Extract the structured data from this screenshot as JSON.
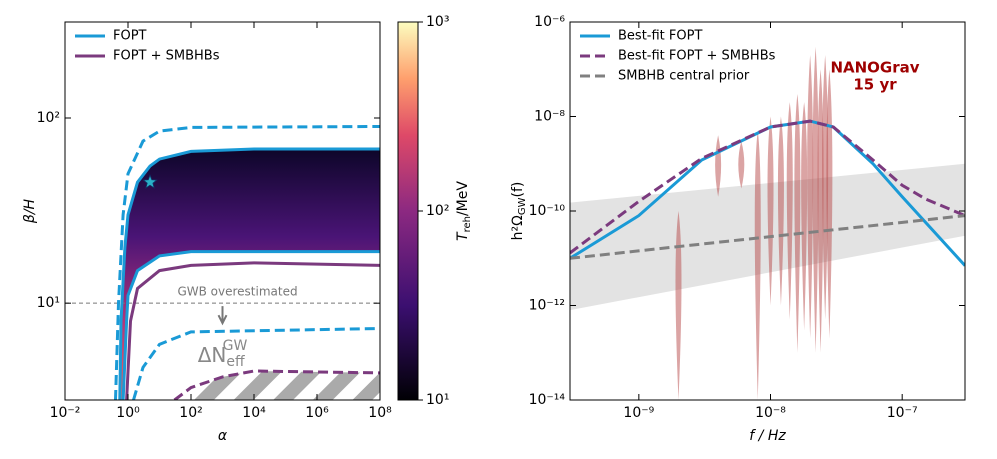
{
  "chart_data": [
    {
      "type": "line",
      "xlabel": "α",
      "ylabel": "β/H",
      "xscale": "log",
      "yscale": "log",
      "legend": "upper left",
      "xlim": [
        0.01,
        100000000
      ],
      "ylim": [
        3,
        330
      ],
      "xticks": [
        {
          "value": 0.01,
          "label": "10⁻²"
        },
        {
          "value": 1,
          "label": "10⁰"
        },
        {
          "value": 100,
          "label": "10²"
        },
        {
          "value": 10000,
          "label": "10⁴"
        },
        {
          "value": 1000000,
          "label": "10⁶"
        },
        {
          "value": 100000000,
          "label": "10⁸"
        }
      ],
      "yticks": [
        {
          "value": 10,
          "label": "10¹"
        },
        {
          "value": 100,
          "label": "10²"
        }
      ],
      "series": [
        {
          "name": "FOPT",
          "color": "#1a9ad6",
          "dash": false,
          "x": [
            0.55,
            0.6,
            0.8,
            1,
            2,
            5,
            10,
            100,
            10000,
            100000000
          ],
          "values": [
            3,
            8,
            20,
            30,
            45,
            55,
            60,
            66,
            68,
            68
          ]
        },
        {
          "name": null,
          "color": "#1a9ad6",
          "dash": true,
          "x": [
            0.4,
            0.5,
            0.7,
            1,
            3,
            10,
            100,
            100000000
          ],
          "values": [
            3,
            10,
            30,
            50,
            75,
            85,
            89,
            90
          ]
        },
        {
          "name": null,
          "color": "#1a9ad6",
          "dash": false,
          "x": [
            0.7,
            0.9,
            1,
            2,
            10,
            100,
            100000000
          ],
          "values": [
            3,
            8,
            11,
            15,
            18,
            19,
            19
          ]
        },
        {
          "name": null,
          "color": "#1a9ad6",
          "dash": true,
          "x": [
            1.5,
            3,
            10,
            100,
            100000000
          ],
          "values": [
            3,
            4.5,
            6,
            7,
            7.3
          ]
        },
        {
          "name": "FOPT + SMBHBs",
          "color": "#7b3a7e",
          "dash": false,
          "x": [
            0.9,
            1.2,
            2,
            10,
            100,
            10000,
            100000000
          ],
          "values": [
            3,
            8,
            12,
            15,
            16,
            16.5,
            16
          ]
        },
        {
          "name": null,
          "color": "#7b3a7e",
          "dash": true,
          "x": [
            30,
            100,
            1000,
            10000,
            100000000
          ],
          "values": [
            3,
            3.5,
            4,
            4.3,
            4.2
          ]
        }
      ],
      "star": {
        "x": 5,
        "y": 45
      },
      "hline": 10,
      "annotation": "GWB overestimated",
      "neff": {
        "main": "ΔN",
        "sub": "eff",
        "sup": "GW"
      },
      "colorbar": {
        "label": "T",
        "label_sub": "reh",
        "label_tail": "/MeV",
        "lim": [
          10,
          1000
        ],
        "ticks": [
          {
            "value": 10,
            "label": "10¹"
          },
          {
            "value": 100,
            "label": "10²"
          },
          {
            "value": 1000,
            "label": "10³"
          }
        ]
      }
    },
    {
      "type": "line",
      "xlabel": "f / Hz",
      "ylabel": {
        "main": "h²Ω",
        "sub": "GW",
        "tail": "(f)"
      },
      "xscale": "log",
      "yscale": "log",
      "legend": "upper left",
      "xlim": [
        3e-10,
        3e-07
      ],
      "ylim": [
        1e-14,
        1e-06
      ],
      "xticks": [
        {
          "value": 1e-09,
          "label": "10⁻⁹"
        },
        {
          "value": 1e-08,
          "label": "10⁻⁸"
        },
        {
          "value": 1e-07,
          "label": "10⁻⁷"
        }
      ],
      "yticks": [
        {
          "value": 1e-14,
          "label": "10⁻¹⁴"
        },
        {
          "value": 1e-12,
          "label": "10⁻¹²"
        },
        {
          "value": 1e-10,
          "label": "10⁻¹⁰"
        },
        {
          "value": 1e-08,
          "label": "10⁻⁸"
        },
        {
          "value": 1e-06,
          "label": "10⁻⁶"
        }
      ],
      "series": [
        {
          "name": "Best-fit FOPT",
          "color": "#1a9ad6",
          "dash": false,
          "x": [
            3e-10,
            1e-09,
            3e-09,
            1e-08,
            2e-08,
            3e-08,
            6e-08,
            1e-07,
            3e-07
          ],
          "values": [
            1e-11,
            8e-11,
            1.2e-09,
            6e-09,
            8e-09,
            6e-09,
            1e-09,
            2e-10,
            7e-12
          ]
        },
        {
          "name": "Best-fit FOPT + SMBHBs",
          "color": "#7b3a7e",
          "dash": true,
          "x": [
            3e-10,
            1e-09,
            3e-09,
            1e-08,
            2e-08,
            3e-08,
            6e-08,
            1e-07,
            1.5e-07,
            3e-07
          ],
          "values": [
            1.3e-11,
            1.6e-10,
            1.3e-09,
            6e-09,
            8e-09,
            6e-09,
            1.2e-09,
            3.5e-10,
            1.8e-10,
            8e-11
          ]
        },
        {
          "name": "SMBHB central prior",
          "color": "#808080",
          "dash": true,
          "x": [
            3e-10,
            3e-07
          ],
          "values": [
            1e-11,
            8e-11
          ]
        }
      ],
      "band": {
        "x": [
          3e-10,
          3e-07
        ],
        "low": [
          8e-13,
          3e-11
        ],
        "high": [
          1.5e-10,
          1e-09
        ]
      },
      "violins": {
        "x": [
          2e-09,
          4e-09,
          6e-09,
          8e-09,
          1e-08,
          1.2e-08,
          1.4e-08,
          1.6e-08,
          1.8e-08,
          2e-08,
          2.2e-08,
          2.4e-08,
          2.6e-08,
          2.8e-08
        ],
        "low": [
          1e-14,
          2e-10,
          3e-10,
          1e-14,
          1e-12,
          1e-12,
          5e-13,
          1e-13,
          3e-13,
          2e-13,
          1e-13,
          1e-13,
          5e-13,
          2e-13
        ],
        "high": [
          1e-10,
          4e-09,
          3e-09,
          5e-09,
          1e-08,
          1e-08,
          2e-08,
          3e-08,
          2e-08,
          2e-07,
          3e-07,
          1e-07,
          2e-07,
          1e-07
        ],
        "values": [
          1e-11,
          1e-09,
          1e-09,
          5e-10,
          1e-09,
          1e-09,
          2e-09,
          2e-09,
          2e-09,
          3e-09,
          3e-09,
          3e-09,
          3e-09,
          3e-09
        ]
      },
      "annotation": [
        "NANOGrav",
        "15 yr"
      ]
    }
  ]
}
